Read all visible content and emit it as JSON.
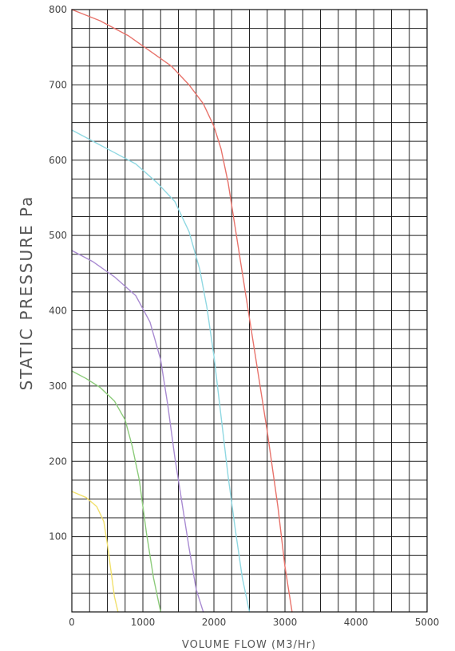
{
  "chart_data": {
    "type": "line",
    "title": "",
    "xlabel": "VOLUME FLOW (M3/Hr)",
    "ylabel": "STATIC PRESSURE Pa",
    "xlim": [
      0,
      5000
    ],
    "ylim": [
      0,
      800
    ],
    "grid": true,
    "x_ticks": [
      0,
      1000,
      2000,
      3000,
      4000,
      5000
    ],
    "y_ticks": [
      100,
      200,
      300,
      400,
      500,
      600,
      700,
      800
    ],
    "x_tick_labels": [
      "0",
      "1000",
      "2000",
      "3000",
      "4000",
      "5000"
    ],
    "y_tick_labels": [
      "100",
      "200",
      "300",
      "400",
      "500",
      "600",
      "700",
      "800"
    ],
    "series": [
      {
        "color": "#e8736b",
        "x": [
          0,
          400,
          800,
          1100,
          1400,
          1650,
          1850,
          2000,
          2100,
          2200,
          2300,
          2450,
          2600,
          2750,
          2900,
          3000,
          3100
        ],
        "y": [
          800,
          785,
          765,
          745,
          725,
          700,
          675,
          645,
          615,
          570,
          510,
          420,
          330,
          240,
          140,
          60,
          0
        ]
      },
      {
        "color": "#8fd8e2",
        "x": [
          0,
          300,
          600,
          900,
          1200,
          1450,
          1650,
          1800,
          1900,
          2000,
          2100,
          2200,
          2300,
          2400,
          2500
        ],
        "y": [
          640,
          625,
          610,
          595,
          570,
          545,
          505,
          455,
          405,
          340,
          260,
          180,
          110,
          45,
          0
        ]
      },
      {
        "color": "#a98bd2",
        "x": [
          0,
          300,
          600,
          900,
          1100,
          1250,
          1350,
          1450,
          1550,
          1650,
          1750,
          1850
        ],
        "y": [
          480,
          465,
          445,
          420,
          385,
          335,
          275,
          205,
          145,
          85,
          30,
          0
        ]
      },
      {
        "color": "#8ccb7a",
        "x": [
          0,
          200,
          400,
          600,
          750,
          850,
          950,
          1000,
          1050,
          1100,
          1150,
          1250
        ],
        "y": [
          320,
          310,
          298,
          280,
          255,
          220,
          175,
          140,
          105,
          75,
          45,
          0
        ]
      },
      {
        "color": "#f1e06c",
        "x": [
          0,
          200,
          350,
          450,
          500,
          550,
          600,
          650
        ],
        "y": [
          160,
          152,
          140,
          120,
          90,
          55,
          20,
          0
        ]
      }
    ]
  }
}
